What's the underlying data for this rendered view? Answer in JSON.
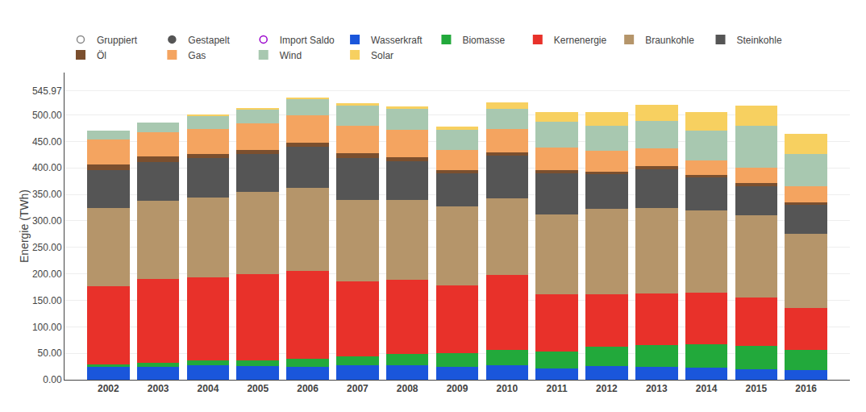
{
  "chart_data": {
    "type": "bar",
    "stacked": true,
    "grid": true,
    "legend": "top",
    "ylabel": "Energie (TWh)",
    "categories": [
      "2002",
      "2003",
      "2004",
      "2005",
      "2006",
      "2007",
      "2008",
      "2009",
      "2010",
      "2011",
      "2012",
      "2013",
      "2014",
      "2015",
      "2016"
    ],
    "ylim": [
      0,
      580
    ],
    "yticks": [
      {
        "value": 0,
        "label": "0.00"
      },
      {
        "value": 50,
        "label": "50.00"
      },
      {
        "value": 100,
        "label": "100.00"
      },
      {
        "value": 150,
        "label": "150.00"
      },
      {
        "value": 200,
        "label": "200.00"
      },
      {
        "value": 250,
        "label": "250.00"
      },
      {
        "value": 300,
        "label": "300.00"
      },
      {
        "value": 350,
        "label": "350.00"
      },
      {
        "value": 400,
        "label": "400.00"
      },
      {
        "value": 450,
        "label": "450.00"
      },
      {
        "value": 500,
        "label": "500.00"
      },
      545.97
    ],
    "series": [
      {
        "name": "Gruppiert",
        "type": "scatter",
        "marker": "open_circle",
        "color": "#888888",
        "values": [
          null,
          null,
          null,
          null,
          null,
          null,
          null,
          null,
          null,
          null,
          null,
          null,
          null,
          null,
          null
        ]
      },
      {
        "name": "Gestapelt",
        "type": "scatter",
        "marker": "circle",
        "color": "#555555",
        "values": [
          null,
          null,
          null,
          null,
          null,
          null,
          null,
          null,
          null,
          null,
          null,
          null,
          null,
          null,
          null
        ]
      },
      {
        "name": "Import Saldo",
        "type": "scatter",
        "marker": "open_circle",
        "color": "#9900cc",
        "values": [
          null,
          null,
          null,
          null,
          null,
          null,
          null,
          null,
          null,
          null,
          null,
          null,
          null,
          null,
          null
        ]
      },
      {
        "name": "Wasserkraft",
        "type": "bar",
        "color": "#1a56db",
        "values": [
          24,
          25,
          27,
          26,
          25,
          27,
          27,
          25,
          28,
          22,
          26,
          24,
          23,
          20,
          18
        ]
      },
      {
        "name": "Biomasse",
        "type": "bar",
        "color": "#22a93b",
        "values": [
          5,
          7,
          9,
          11,
          14,
          17,
          21,
          25,
          29,
          32,
          37,
          42,
          44,
          44,
          38
        ]
      },
      {
        "name": "Kernenergie",
        "type": "bar",
        "color": "#e8312a",
        "values": [
          147,
          158,
          158,
          163,
          167,
          141,
          141,
          128,
          141,
          108,
          99,
          97,
          97,
          92,
          80
        ]
      },
      {
        "name": "Braunkohle",
        "type": "bar",
        "color": "#b5956a",
        "values": [
          148,
          148,
          150,
          154,
          156,
          154,
          150,
          150,
          145,
          150,
          160,
          162,
          156,
          155,
          140
        ]
      },
      {
        "name": "Steinkohle",
        "type": "bar",
        "color": "#555555",
        "values": [
          72,
          73,
          74,
          72,
          78,
          80,
          73,
          61,
          80,
          78,
          66,
          73,
          62,
          55,
          55
        ]
      },
      {
        "name": "Öl",
        "type": "bar",
        "color": "#7b4f2e",
        "values": [
          10,
          10,
          9,
          8,
          8,
          9,
          8,
          7,
          7,
          6,
          5,
          5,
          5,
          5,
          4
        ]
      },
      {
        "name": "Gas",
        "type": "bar",
        "color": "#f4a460",
        "values": [
          48,
          46,
          46,
          50,
          52,
          52,
          52,
          38,
          44,
          43,
          40,
          34,
          27,
          30,
          30
        ]
      },
      {
        "name": "Wind",
        "type": "bar",
        "color": "#a8c8b0",
        "values": [
          16,
          19,
          26,
          27,
          31,
          39,
          40,
          38,
          37,
          48,
          46,
          51,
          57,
          79,
          62
        ]
      },
      {
        "name": "Solar",
        "type": "bar",
        "color": "#f7d060",
        "values": [
          0,
          0,
          1,
          2,
          2,
          3,
          4,
          6,
          12,
          19,
          26,
          31,
          34,
          38,
          37
        ]
      }
    ]
  }
}
